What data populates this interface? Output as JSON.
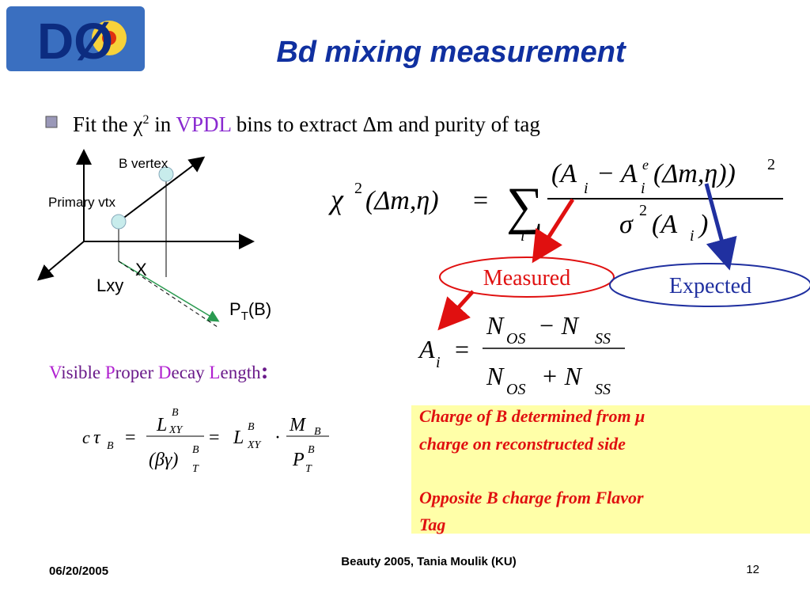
{
  "logo": "DØ",
  "title": "Bd mixing measurement",
  "bullet": [
    "Fit the ",
    "χ",
    "2",
    "  in ",
    "VPDL",
    " bins to extract ",
    "Δ",
    "m and purity of tag"
  ],
  "diagram": {
    "b_vertex": "B vertex",
    "primary_vtx": "Primary vtx",
    "x": "X",
    "lxy": "Lxy",
    "pt": [
      "P",
      "T",
      "(B)"
    ]
  },
  "vpdl_label": [
    "V",
    "isible ",
    "P",
    "roper ",
    "D",
    "ecay ",
    "L",
    "ength",
    ":"
  ],
  "formulas": [
    [
      "χ",
      "2",
      "(Δm,η)",
      "=",
      "∑",
      "i",
      "(A",
      "i",
      "− A",
      "e",
      "i",
      "(Δm,η))",
      "2",
      "σ",
      "2",
      "(A",
      "i",
      ")"
    ],
    [
      "A",
      "i",
      "=",
      "N",
      "OS",
      "− N",
      "SS",
      "N",
      "OS",
      "+ N",
      "SS"
    ],
    [
      "c",
      "τ",
      "B",
      "=",
      "L",
      "B",
      "XY",
      "(βγ)",
      "B",
      "T",
      "=",
      "L",
      "B",
      "XY",
      "·",
      "M",
      "B",
      "P",
      "B",
      "T"
    ]
  ],
  "measured": "Measured",
  "expected": "Expected",
  "note": [
    [
      "Charge of B determined from μ",
      "charge on reconstructed side"
    ],
    [
      "Opposite B charge from Flavor",
      "Tag"
    ]
  ],
  "footer": {
    "date": "06/20/2005",
    "center": "Beauty 2005, Tania Moulik (KU)",
    "page": "12"
  }
}
